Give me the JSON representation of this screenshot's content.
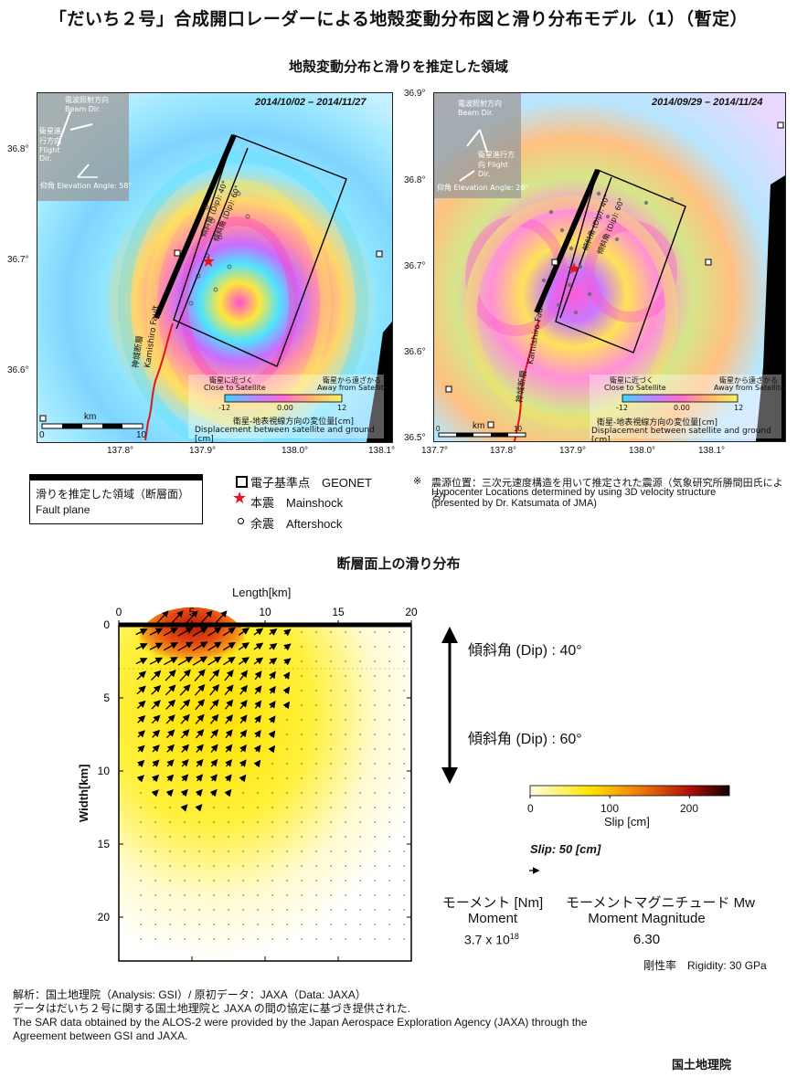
{
  "title": "「だいち２号」合成開口レーダーによる地殻変動分布図と滑り分布モデル（1）（暫定）",
  "section1_title": "地殻変動分布と滑りを推定した領域",
  "section2_title": "断層面上の滑り分布",
  "map_left": {
    "date": "2014/10/02 – 2014/11/27",
    "orbit_label": "衛星進行方向 Flight Dir.",
    "beam_label": "電波照射方向 Beam Dir.",
    "elevation": "仰角 Elevation Angle: 58°",
    "lat_ticks": [
      "36.8°",
      "36.7°",
      "36.6°"
    ],
    "lon_ticks": [
      "137.8°",
      "137.9°",
      "138.0°",
      "138.1°"
    ],
    "fault_label_jp": "神城断層",
    "fault_label_en": "Kamishiro Fault",
    "dip_label_1": "傾斜角 (Dip): 40°",
    "dip_label_2": "傾斜角 (Dip): 60°",
    "scale_label": "km",
    "scale_0": "0",
    "scale_10": "10",
    "colorbar": {
      "near_jp": "衛星に近づく",
      "near_en": "Close to Satellite",
      "far_jp": "衛星から遠ざかる",
      "far_en": "Away from Satellite",
      "min": "-12",
      "mid": "0.00",
      "max": "12",
      "caption_jp": "衛星-地表視線方向の変位量[cm]",
      "caption_en": "Displacement between satellite and ground [cm]"
    }
  },
  "map_right": {
    "date": "2014/09/29 – 2014/11/24",
    "orbit_label": "衛星進行方向 Flight Dir.",
    "beam_label": "電波照射方向 Beam Dir.",
    "elevation": "仰角 Elevation Angle: 26°",
    "lat_ticks": [
      "36.9°",
      "36.8°",
      "36.7°",
      "36.6°",
      "36.5°"
    ],
    "lon_ticks": [
      "137.7°",
      "137.8°",
      "137.9°",
      "138.0°",
      "138.1°"
    ],
    "fault_label_jp": "神城断層",
    "fault_label_en": "Kamishiro Fault",
    "dip_label_1": "傾斜角 (Dip): 40°",
    "dip_label_2": "傾斜角 (Dip): 60°",
    "scale_label": "km",
    "scale_0": "0",
    "scale_10": "10",
    "colorbar": {
      "near_jp": "衛星に近づく",
      "near_en": "Close to Satellite",
      "far_jp": "衛星から遠ざかる",
      "far_en": "Away from Satellite",
      "min": "-12",
      "mid": "0.00",
      "max": "12",
      "caption_jp": "衛星-地表視線方向の変位量[cm]",
      "caption_en": "Displacement between satellite and ground [cm]"
    }
  },
  "legend": {
    "fault_plane_jp": "滑りを推定した領域（断層面）",
    "fault_plane_en": "Fault plane",
    "geonet": "電子基準点　GEONET",
    "mainshock": "本震　Mainshock",
    "aftershock": "余震　Aftershock",
    "note_mark": "※",
    "note_jp": "震源位置：三次元速度構造を用いて推定された震源（気象研究所勝間田氏による）",
    "note_en1": "Hypocenter Locations determined by using 3D velocity structure",
    "note_en2": "(presented by Dr. Katsumata of JMA)"
  },
  "chart_data": {
    "type": "heatmap",
    "xlabel": "Length[km]",
    "ylabel": "Width[km]",
    "xlim": [
      0,
      20
    ],
    "ylim": [
      0,
      23
    ],
    "x_ticks": [
      "0",
      "5",
      "10",
      "15",
      "20"
    ],
    "y_ticks": [
      "0",
      "5",
      "10",
      "15",
      "20"
    ],
    "colorbar_label": "Slip [cm]",
    "colorbar_ticks": [
      "0",
      "100",
      "200"
    ],
    "colorbar_range": [
      0,
      250
    ],
    "dip_upper": "傾斜角 (Dip) : 40°",
    "dip_lower": "傾斜角 (Dip) : 60°",
    "dip_boundary_km": 3,
    "slip_peak_cm": 250,
    "slip_peak_location_km": [
      5,
      1
    ],
    "reference_arrow": "Slip: 50 [cm]"
  },
  "moment": {
    "label_jp": "モーメント [Nm]",
    "label_en": "Moment",
    "value": "3.7 x 10",
    "exponent": "18",
    "mag_label_jp": "モーメントマグニチュード Mw",
    "mag_label_en": "Moment Magnitude",
    "mag_value": "6.30",
    "rigidity": "剛性率　Rigidity: 30 GPa"
  },
  "footer": {
    "line1": "解析：国土地理院（Analysis: GSI）/ 原初データ：JAXA（Data: JAXA）",
    "line2": "データはだいち２号に関する国土地理院と JAXA の間の協定に基づき提供された.",
    "line3": "The SAR data obtained by the ALOS-2 were provided by the Japan Aerospace Exploration Agency (JAXA) through the",
    "line4": "Agreement between GSI and JAXA.",
    "org": "国土地理院"
  },
  "colors": {
    "slip_low": "#fffde8",
    "slip_mid": "#ffe400",
    "slip_high": "#c0180a",
    "slip_max": "#1a0000",
    "fault": "#000000",
    "mainshock": "#e3141c"
  }
}
